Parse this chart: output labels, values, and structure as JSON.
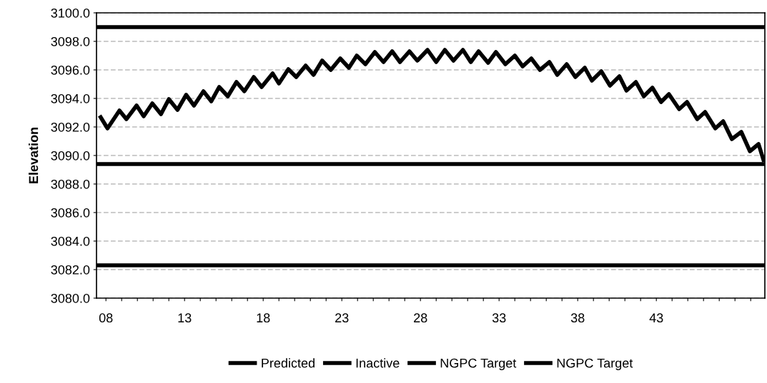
{
  "chart_data": {
    "type": "line",
    "ylabel": "Elevation",
    "xlim": [
      7.4,
      49.9
    ],
    "ylim": [
      3080,
      3100
    ],
    "xticks": [
      {
        "value": 8,
        "label": "08"
      },
      {
        "value": 9,
        "label": null
      },
      {
        "value": 10,
        "label": null
      },
      {
        "value": 11,
        "label": null
      },
      {
        "value": 12,
        "label": null
      },
      {
        "value": 13,
        "label": "13"
      },
      {
        "value": 14,
        "label": null
      },
      {
        "value": 15,
        "label": null
      },
      {
        "value": 16,
        "label": null
      },
      {
        "value": 17,
        "label": null
      },
      {
        "value": 18,
        "label": "18"
      },
      {
        "value": 19,
        "label": null
      },
      {
        "value": 20,
        "label": null
      },
      {
        "value": 21,
        "label": null
      },
      {
        "value": 22,
        "label": null
      },
      {
        "value": 23,
        "label": "23"
      },
      {
        "value": 24,
        "label": null
      },
      {
        "value": 25,
        "label": null
      },
      {
        "value": 26,
        "label": null
      },
      {
        "value": 27,
        "label": null
      },
      {
        "value": 28,
        "label": "28"
      },
      {
        "value": 29,
        "label": null
      },
      {
        "value": 30,
        "label": null
      },
      {
        "value": 31,
        "label": null
      },
      {
        "value": 32,
        "label": null
      },
      {
        "value": 33,
        "label": "33"
      },
      {
        "value": 34,
        "label": null
      },
      {
        "value": 35,
        "label": null
      },
      {
        "value": 36,
        "label": null
      },
      {
        "value": 37,
        "label": null
      },
      {
        "value": 38,
        "label": "38"
      },
      {
        "value": 39,
        "label": null
      },
      {
        "value": 40,
        "label": null
      },
      {
        "value": 41,
        "label": null
      },
      {
        "value": 42,
        "label": null
      },
      {
        "value": 43,
        "label": "43"
      },
      {
        "value": 44,
        "label": null
      },
      {
        "value": 45,
        "label": null
      },
      {
        "value": 46,
        "label": null
      },
      {
        "value": 47,
        "label": null
      },
      {
        "value": 48,
        "label": null
      },
      {
        "value": 49,
        "label": null
      }
    ],
    "yticks": [
      {
        "value": 3080,
        "label": "3080.0"
      },
      {
        "value": 3082,
        "label": "3082.0"
      },
      {
        "value": 3084,
        "label": "3084.0"
      },
      {
        "value": 3086,
        "label": "3086.0"
      },
      {
        "value": 3088,
        "label": "3088.0"
      },
      {
        "value": 3090,
        "label": "3090.0"
      },
      {
        "value": 3092,
        "label": "3092.0"
      },
      {
        "value": 3094,
        "label": "3094.0"
      },
      {
        "value": 3096,
        "label": "3096.0"
      },
      {
        "value": 3098,
        "label": "3098.0"
      },
      {
        "value": 3100,
        "label": "3100.0"
      }
    ],
    "grid": "y",
    "legend": "bottom",
    "marker": "none",
    "line_style": "solid",
    "series": [
      {
        "name": "Predicted",
        "color": "#000000",
        "x": [
          7.6,
          8.1,
          8.86,
          9.3,
          9.95,
          10.4,
          10.95,
          11.5,
          12.0,
          12.55,
          13.1,
          13.6,
          14.2,
          14.7,
          15.2,
          15.75,
          16.3,
          16.8,
          17.4,
          17.9,
          18.6,
          19.0,
          19.6,
          20.1,
          20.7,
          21.2,
          21.75,
          22.3,
          22.9,
          23.45,
          23.95,
          24.5,
          25.1,
          25.65,
          26.2,
          26.7,
          27.3,
          27.8,
          28.45,
          29.0,
          29.55,
          30.1,
          30.7,
          31.2,
          31.7,
          32.3,
          32.8,
          33.4,
          34.0,
          34.5,
          35.05,
          35.6,
          36.2,
          36.7,
          37.3,
          37.85,
          38.45,
          38.9,
          39.5,
          40.05,
          40.65,
          41.1,
          41.7,
          42.2,
          42.75,
          43.3,
          43.8,
          44.45,
          44.95,
          45.6,
          46.1,
          46.75,
          47.25,
          47.8,
          48.4,
          48.95,
          49.5,
          49.85
        ],
        "values": [
          3092.8,
          3091.9,
          3093.15,
          3092.55,
          3093.5,
          3092.75,
          3093.65,
          3092.9,
          3093.95,
          3093.2,
          3094.25,
          3093.5,
          3094.5,
          3093.8,
          3094.8,
          3094.15,
          3095.15,
          3094.5,
          3095.5,
          3094.8,
          3095.75,
          3095.05,
          3096.05,
          3095.5,
          3096.3,
          3095.65,
          3096.65,
          3096.0,
          3096.8,
          3096.15,
          3097.0,
          3096.4,
          3097.25,
          3096.55,
          3097.3,
          3096.55,
          3097.3,
          3096.65,
          3097.4,
          3096.55,
          3097.4,
          3096.65,
          3097.4,
          3096.55,
          3097.3,
          3096.5,
          3097.25,
          3096.4,
          3097.0,
          3096.25,
          3096.8,
          3096.0,
          3096.55,
          3095.65,
          3096.4,
          3095.5,
          3096.15,
          3095.25,
          3095.9,
          3094.9,
          3095.55,
          3094.55,
          3095.15,
          3094.15,
          3094.75,
          3093.75,
          3094.3,
          3093.25,
          3093.75,
          3092.55,
          3093.05,
          3091.9,
          3092.4,
          3091.15,
          3091.65,
          3090.3,
          3090.8,
          3089.55
        ]
      },
      {
        "name": "Inactive",
        "color": "#000000",
        "x": [
          7.4,
          49.9
        ],
        "values": [
          3099.0,
          3099.0
        ]
      },
      {
        "name": "NGPC Target",
        "color": "#000000",
        "x": [
          7.4,
          49.9
        ],
        "values": [
          3089.4,
          3089.4
        ]
      },
      {
        "name": "NGPC Target",
        "color": "#000000",
        "x": [
          7.4,
          49.9
        ],
        "values": [
          3082.3,
          3082.3
        ]
      }
    ]
  }
}
